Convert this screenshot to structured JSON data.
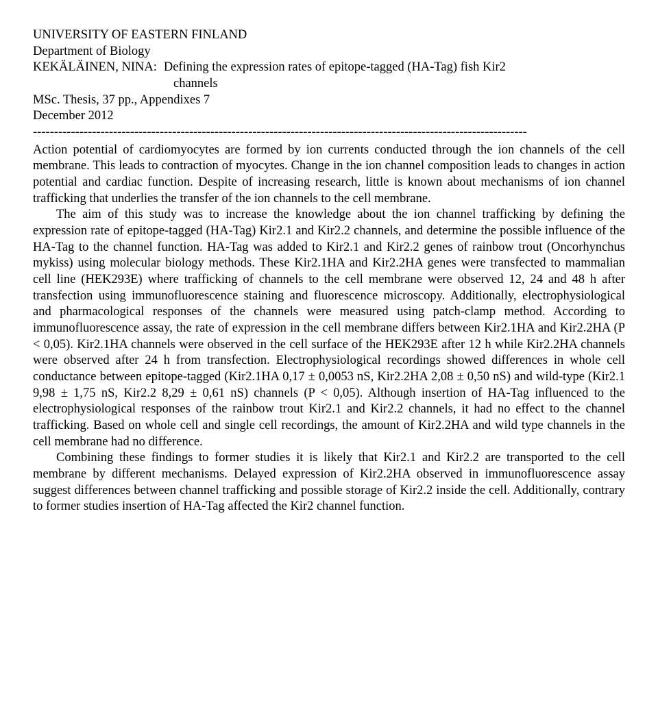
{
  "header": {
    "university": "UNIVERSITY OF EASTERN FINLAND",
    "department": "Department of Biology",
    "author": "KEKÄLÄINEN, NINA:",
    "title_part1": "Defining the expression rates of epitope-tagged (HA-Tag) fish Kir2",
    "title_part2": "channels",
    "thesis": "MSc. Thesis, 37 pp., Appendixes 7",
    "date": "December 2012",
    "dashes": "---------------------------------------------------------------------------------------------------------------------"
  },
  "abstract": {
    "p1": "Action potential of cardiomyocytes are formed by ion currents conducted through the ion channels of the cell membrane. This leads to contraction of myocytes. Change in the ion channel composition leads to changes in action potential and cardiac function. Despite of increasing research, little is known about mechanisms of ion channel trafficking that underlies the transfer of the ion channels to the cell membrane.",
    "p2": "The aim of this study was to increase the knowledge about the ion channel trafficking by defining the expression rate of epitope-tagged (HA-Tag) Kir2.1 and Kir2.2 channels, and determine the possible influence of the HA-Tag to the channel function. HA-Tag was added to Kir2.1 and Kir2.2 genes of rainbow trout (Oncorhynchus mykiss) using molecular biology methods. These Kir2.1HA and Kir2.2HA genes were transfected to mammalian cell line (HEK293E) where trafficking of channels to the cell membrane were observed 12, 24 and 48 h after transfection using immunofluorescence staining and fluorescence microscopy. Additionally, electrophysiological and pharmacological responses of the channels were measured using patch-clamp method. According to immunofluorescence assay, the rate of expression in the cell membrane differs between Kir2.1HA and Kir2.2HA (P < 0,05). Kir2.1HA channels were observed in the cell surface of the HEK293E after 12 h while Kir2.2HA channels were observed after 24 h from transfection. Electrophysiological recordings showed differences in whole cell conductance between epitope-tagged (Kir2.1HA 0,17 ± 0,0053 nS, Kir2.2HA 2,08 ± 0,50 nS) and wild-type (Kir2.1 9,98 ± 1,75 nS, Kir2.2 8,29 ± 0,61 nS) channels (P < 0,05). Although insertion of HA-Tag influenced to the electrophysiological responses of the rainbow trout Kir2.1 and Kir2.2 channels, it had no effect to the channel trafficking. Based on whole cell and single cell recordings, the amount of Kir2.2HA and wild type channels in the cell membrane had no difference.",
    "p3": "Combining these findings to former studies it is likely that Kir2.1 and Kir2.2 are transported to the cell membrane by different mechanisms. Delayed expression of Kir2.2HA observed in immunofluorescence assay suggest differences between channel trafficking and possible storage of Kir2.2 inside the cell. Additionally, contrary to former studies insertion of HA-Tag affected the Kir2 channel function."
  }
}
